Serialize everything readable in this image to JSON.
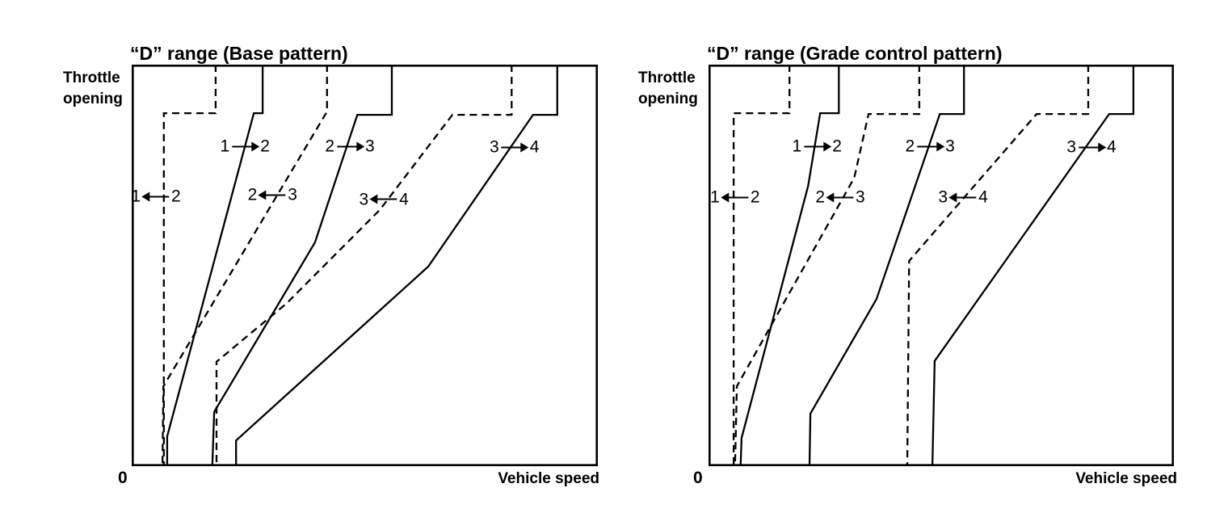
{
  "page": {
    "background": "#ffffff",
    "ink": "#000000"
  },
  "legend_note": "solid line = upshift, dashed line = downshift",
  "chart_data": [
    {
      "type": "line",
      "title": "“D” range (Base pattern)",
      "ylabel": "Throttle\nopening",
      "xlabel": "Vehicle speed",
      "origin_label": "0",
      "axes_note": "No numeric ticks shown; point coordinates are normalized 0–100 (x = vehicle speed, y = throttle opening).",
      "xlim": [
        0,
        100
      ],
      "ylim": [
        0,
        100
      ],
      "grid": false,
      "series": [
        {
          "name": "upshift-1-2",
          "style": "solid",
          "points": [
            [
              28.1,
              100
            ],
            [
              28.1,
              87.9
            ],
            [
              26.2,
              87.9
            ],
            [
              7.6,
              7.4
            ],
            [
              7.6,
              0
            ]
          ]
        },
        {
          "name": "upshift-2-3",
          "style": "solid",
          "points": [
            [
              55.8,
              100
            ],
            [
              55.8,
              87.5
            ],
            [
              48.4,
              87.5
            ],
            [
              39.3,
              55.7
            ],
            [
              17.7,
              13.5
            ],
            [
              17.3,
              0
            ]
          ]
        },
        {
          "name": "upshift-3-4",
          "style": "solid",
          "points": [
            [
              91.3,
              100
            ],
            [
              91.3,
              87.5
            ],
            [
              86.1,
              87.5
            ],
            [
              63.6,
              49.7
            ],
            [
              22.4,
              6.4
            ],
            [
              22.4,
              0
            ]
          ]
        },
        {
          "name": "downshift-2-1",
          "style": "dashed",
          "points": [
            [
              18.0,
              100
            ],
            [
              18.0,
              87.9
            ],
            [
              6.9,
              87.9
            ],
            [
              6.9,
              0
            ]
          ]
        },
        {
          "name": "downshift-3-2",
          "style": "dashed",
          "points": [
            [
              41.9,
              100
            ],
            [
              41.9,
              88.3
            ],
            [
              6.8,
              19.9
            ],
            [
              6.6,
              0
            ]
          ]
        },
        {
          "name": "downshift-4-3",
          "style": "dashed",
          "points": [
            [
              81.5,
              100
            ],
            [
              81.5,
              87.5
            ],
            [
              68.8,
              87.5
            ],
            [
              53.2,
              63.8
            ],
            [
              33.3,
              40.6
            ],
            [
              18.2,
              26.0
            ],
            [
              18.2,
              0
            ]
          ]
        }
      ],
      "shift_labels": [
        {
          "from": "1",
          "to": "2",
          "arrow": "right",
          "x": 24.3,
          "y": 79.6
        },
        {
          "from": "2",
          "to": "3",
          "arrow": "right",
          "x": 46.8,
          "y": 79.6
        },
        {
          "from": "3",
          "to": "4",
          "arrow": "right",
          "x": 82.1,
          "y": 79.4
        },
        {
          "from": "1",
          "to": "2",
          "arrow": "left",
          "x": 5.2,
          "y": 67.2
        },
        {
          "from": "2",
          "to": "3",
          "arrow": "left",
          "x": 30.2,
          "y": 67.6
        },
        {
          "from": "3",
          "to": "4",
          "arrow": "left",
          "x": 54.1,
          "y": 66.4
        }
      ]
    },
    {
      "type": "line",
      "title": "“D” range (Grade control pattern)",
      "ylabel": "Throttle\nopening",
      "xlabel": "Vehicle speed",
      "origin_label": "0",
      "axes_note": "No numeric ticks shown; point coordinates are normalized 0–100 (x = vehicle speed, y = throttle opening).",
      "xlim": [
        0,
        100
      ],
      "ylim": [
        0,
        100
      ],
      "grid": false,
      "series": [
        {
          "name": "upshift-1-2",
          "style": "solid",
          "points": [
            [
              28.0,
              100
            ],
            [
              28.0,
              87.9
            ],
            [
              24.0,
              87.9
            ],
            [
              21.4,
              69.8
            ],
            [
              7.1,
              7.0
            ],
            [
              6.9,
              0
            ]
          ]
        },
        {
          "name": "upshift-2-3",
          "style": "solid",
          "points": [
            [
              54.9,
              100
            ],
            [
              54.9,
              87.7
            ],
            [
              49.7,
              87.7
            ],
            [
              36.1,
              41.6
            ],
            [
              21.9,
              13.1
            ],
            [
              21.7,
              0
            ]
          ]
        },
        {
          "name": "upshift-3-4",
          "style": "solid",
          "points": [
            [
              91.3,
              100
            ],
            [
              91.3,
              87.7
            ],
            [
              86.1,
              87.7
            ],
            [
              48.6,
              26.2
            ],
            [
              48.1,
              0
            ]
          ]
        },
        {
          "name": "downshift-2-1",
          "style": "dashed",
          "points": [
            [
              17.4,
              100
            ],
            [
              17.4,
              87.9
            ],
            [
              5.4,
              87.9
            ],
            [
              5.4,
              0
            ]
          ]
        },
        {
          "name": "downshift-3-2",
          "style": "dashed",
          "points": [
            [
              45.3,
              100
            ],
            [
              45.3,
              87.7
            ],
            [
              34.4,
              87.7
            ],
            [
              31.3,
              71.8
            ],
            [
              6.1,
              19.9
            ],
            [
              5.7,
              0
            ]
          ]
        },
        {
          "name": "downshift-4-3",
          "style": "dashed",
          "points": [
            [
              81.6,
              100
            ],
            [
              81.6,
              87.7
            ],
            [
              70.5,
              87.7
            ],
            [
              43.1,
              51.1
            ],
            [
              42.7,
              0
            ]
          ]
        }
      ],
      "shift_labels": [
        {
          "from": "1",
          "to": "2",
          "arrow": "right",
          "x": 23.3,
          "y": 79.6
        },
        {
          "from": "2",
          "to": "3",
          "arrow": "right",
          "x": 47.6,
          "y": 79.6
        },
        {
          "from": "3",
          "to": "4",
          "arrow": "right",
          "x": 82.3,
          "y": 79.4
        },
        {
          "from": "1",
          "to": "2",
          "arrow": "left",
          "x": 5.7,
          "y": 67.0
        },
        {
          "from": "2",
          "to": "3",
          "arrow": "left",
          "x": 28.3,
          "y": 67.0
        },
        {
          "from": "3",
          "to": "4",
          "arrow": "left",
          "x": 54.7,
          "y": 67.0
        }
      ]
    }
  ]
}
